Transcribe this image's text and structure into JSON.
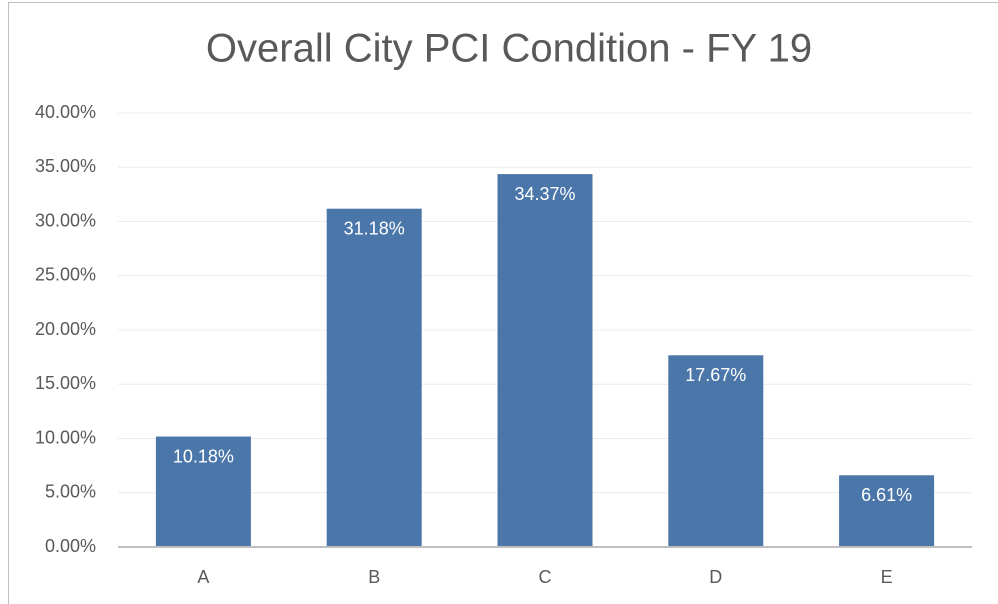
{
  "chart_data": {
    "type": "bar",
    "title": "Overall City PCI Condition - FY 19",
    "categories": [
      "A",
      "B",
      "C",
      "D",
      "E"
    ],
    "values": [
      10.18,
      31.18,
      34.37,
      17.67,
      6.61
    ],
    "value_labels": [
      "10.18%",
      "31.18%",
      "34.37%",
      "17.67%",
      "6.61%"
    ],
    "color": "#4a76a9",
    "ylim": [
      0,
      40
    ],
    "yticks": [
      {
        "value": 0,
        "label": "0.00%"
      },
      {
        "value": 5,
        "label": "5.00%"
      },
      {
        "value": 10,
        "label": "10.00%"
      },
      {
        "value": 15,
        "label": "15.00%"
      },
      {
        "value": 20,
        "label": "20.00%"
      },
      {
        "value": 25,
        "label": "25.00%"
      },
      {
        "value": 30,
        "label": "30.00%"
      },
      {
        "value": 35,
        "label": "35.00%"
      },
      {
        "value": 40,
        "label": "40.00%"
      }
    ],
    "grid": true
  }
}
